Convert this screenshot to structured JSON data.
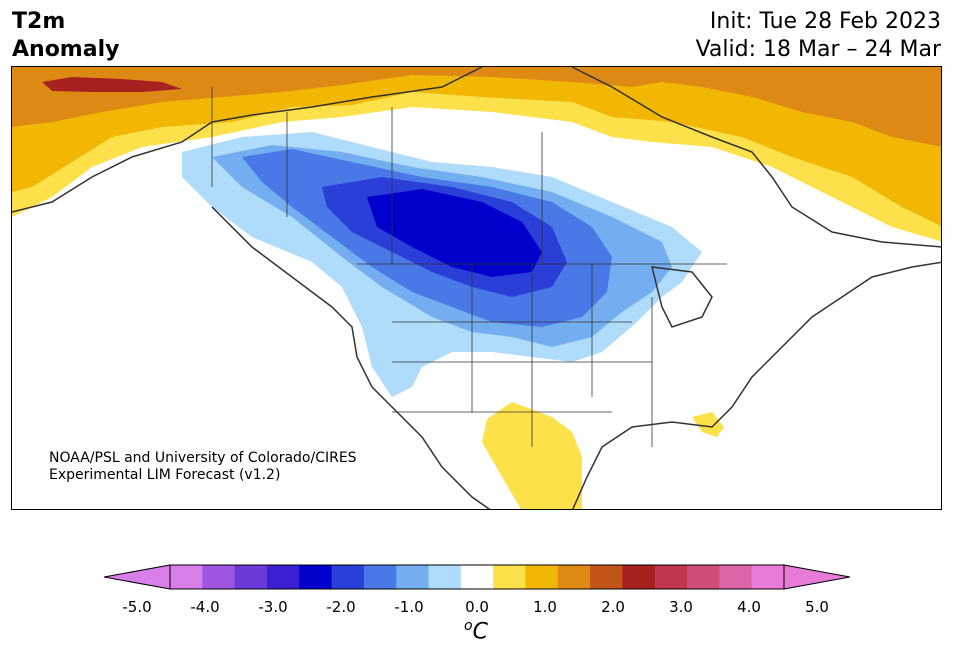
{
  "title": {
    "variable": "T2m",
    "field": "Anomaly",
    "init": "Init: Tue 28 Feb 2023",
    "valid": "Valid: 18 Mar – 24 Mar"
  },
  "credit": {
    "line1": "NOAA/PSL and University of Colorado/CIRES",
    "line2": "Experimental LIM Forecast (v1.2)"
  },
  "colorbar": {
    "unit_base": "C",
    "unit_sup": "o",
    "tick_labels": [
      "-5.0",
      "-4.0",
      "-3.0",
      "-2.0",
      "-1.0",
      "0.0",
      "1.0",
      "2.0",
      "3.0",
      "4.0",
      "5.0"
    ],
    "levels": [
      -5.0,
      -4.5,
      -4.0,
      -3.5,
      -3.0,
      -2.5,
      -2.0,
      -1.5,
      -1.0,
      -0.5,
      0.5,
      1.0,
      1.5,
      2.0,
      2.5,
      3.0,
      3.5,
      4.0,
      4.5,
      5.0
    ],
    "colors": {
      "under": "#d87ee8",
      "bins": [
        "#d87ee8",
        "#9e55e0",
        "#6b3ad8",
        "#3a20d0",
        "#0000cc",
        "#2a3fd8",
        "#4a78e6",
        "#74aef0",
        "#aedcfa",
        "#ffffff",
        "#fde14a",
        "#f2b705",
        "#dd8a14",
        "#c2551a",
        "#a82121",
        "#c03550",
        "#d04d7a",
        "#dc64a8",
        "#e87ad8"
      ],
      "over": "#e87ad8"
    }
  },
  "map_colors": {
    "cold_1": "#aedcfa",
    "cold_2": "#74aef0",
    "cold_3": "#4a78e6",
    "cold_4": "#2a3fd8",
    "cold_5": "#0000cc",
    "warm_1": "#fde14a",
    "warm_2": "#f2b705",
    "warm_3": "#dd8a14",
    "warm_4": "#a82121",
    "coast": "#333333"
  }
}
